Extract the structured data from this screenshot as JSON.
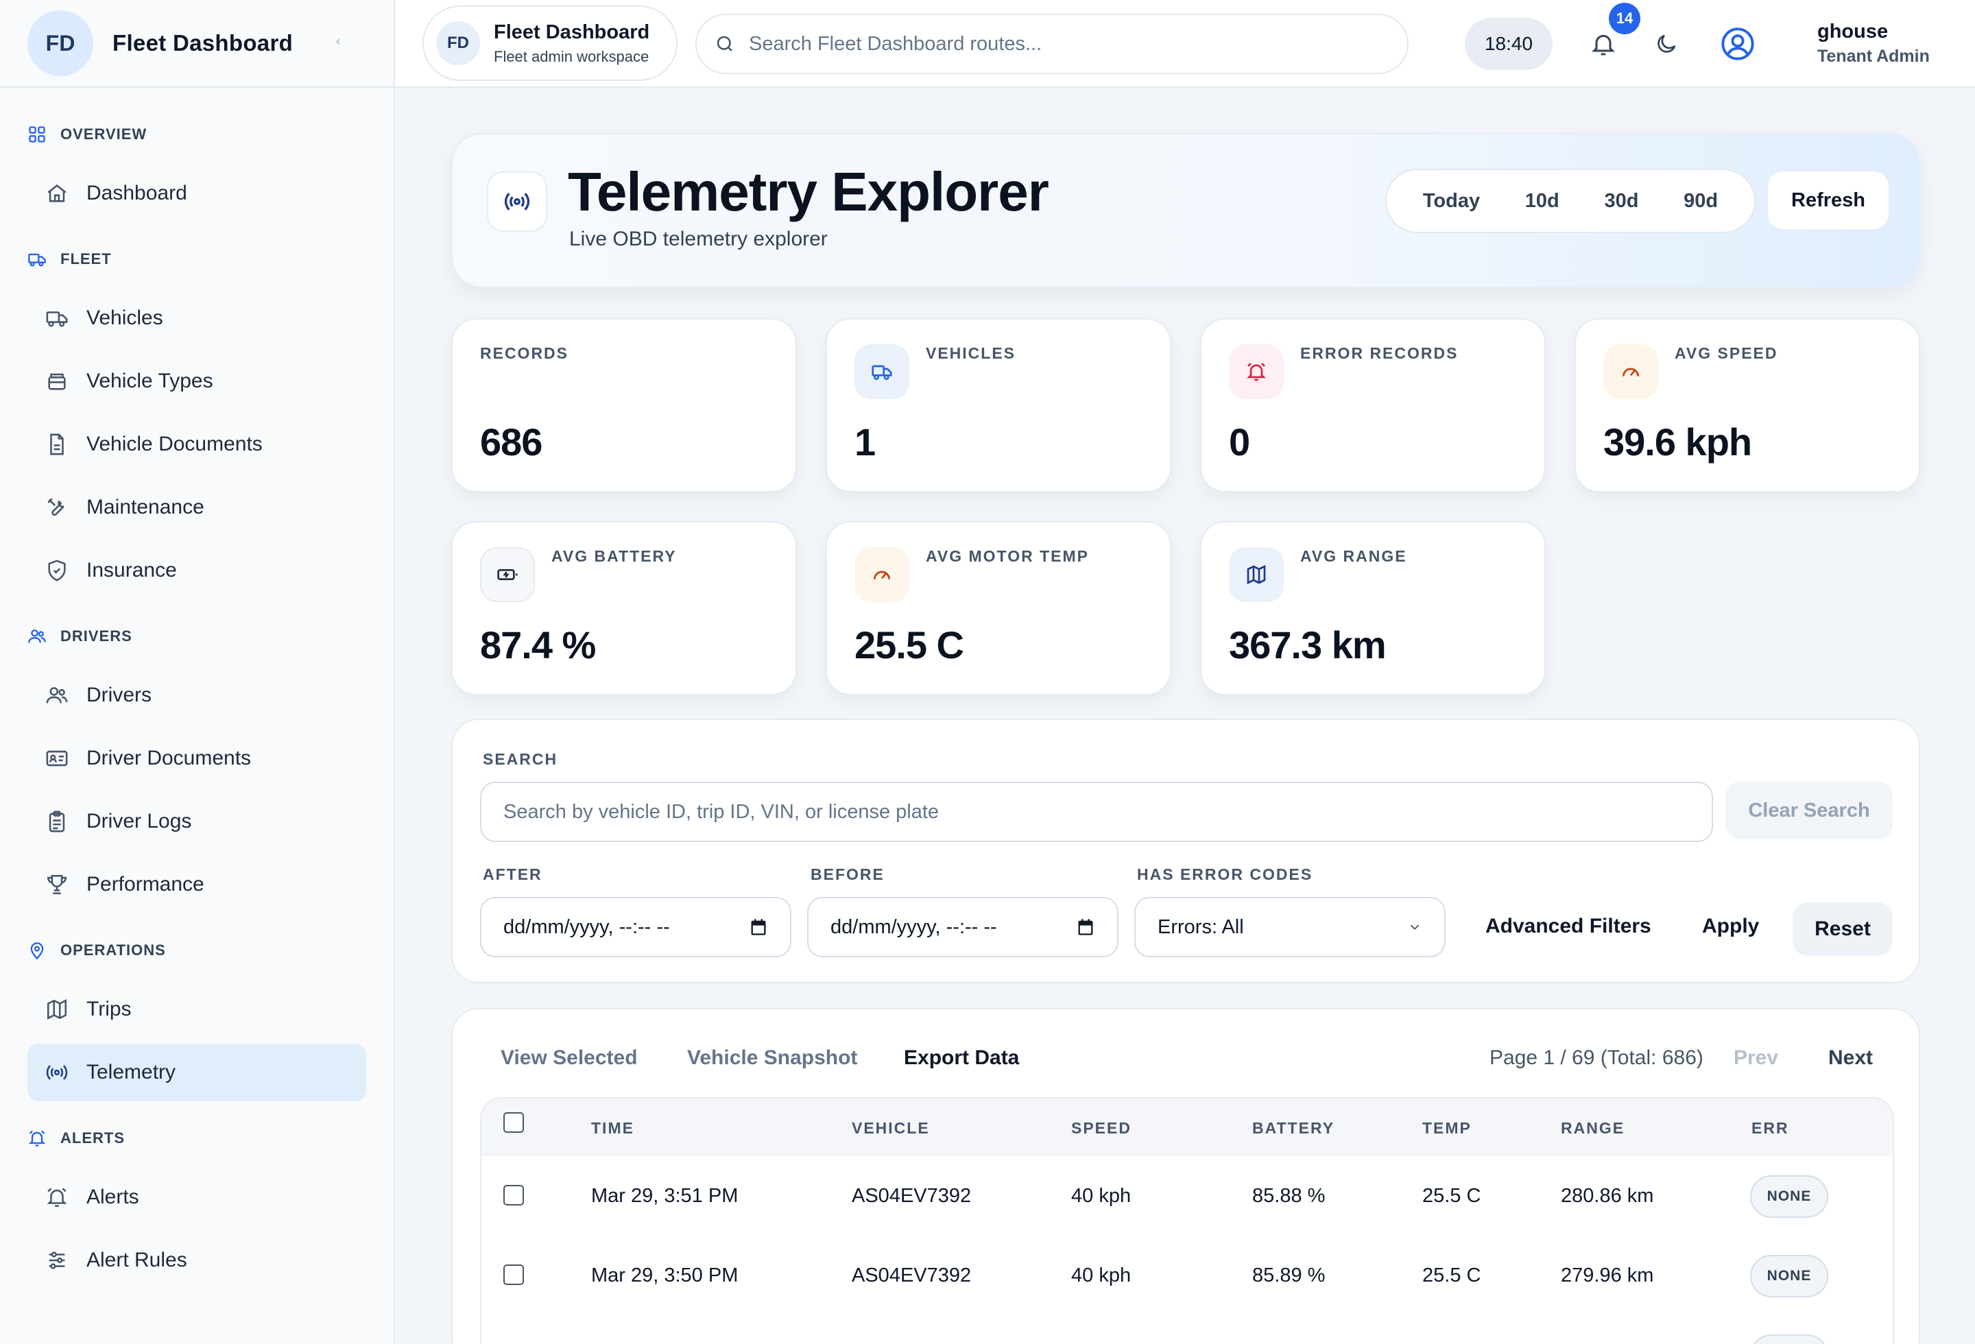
{
  "brand": {
    "initials": "FD",
    "name": "Fleet Dashboard",
    "collapse": "‹"
  },
  "nav": {
    "overview": "OVERVIEW",
    "dashboard": "Dashboard",
    "fleet": "FLEET",
    "vehicles": "Vehicles",
    "vehicle_types": "Vehicle Types",
    "vehicle_documents": "Vehicle Documents",
    "maintenance": "Maintenance",
    "insurance": "Insurance",
    "drivers_section": "DRIVERS",
    "drivers": "Drivers",
    "driver_documents": "Driver Documents",
    "driver_logs": "Driver Logs",
    "performance": "Performance",
    "operations": "OPERATIONS",
    "trips": "Trips",
    "telemetry": "Telemetry",
    "alerts_section": "ALERTS",
    "alerts": "Alerts",
    "alert_rules": "Alert Rules"
  },
  "topbar": {
    "ws_initials": "FD",
    "ws_title": "Fleet Dashboard",
    "ws_sub": "Fleet admin workspace",
    "search_placeholder": "Search Fleet Dashboard routes...",
    "clock": "18:40",
    "notifications": "14",
    "user_name": "ghouse",
    "user_role": "Tenant Admin"
  },
  "hero": {
    "title": "Telemetry Explorer",
    "subtitle": "Live OBD telemetry explorer",
    "ranges": [
      "Today",
      "10d",
      "30d",
      "90d"
    ],
    "refresh": "Refresh"
  },
  "stats": {
    "records": {
      "label": "RECORDS",
      "value": "686"
    },
    "vehicles": {
      "label": "VEHICLES",
      "value": "1"
    },
    "errors": {
      "label": "ERROR RECORDS",
      "value": "0"
    },
    "speed": {
      "label": "AVG SPEED",
      "value": "39.6 kph"
    },
    "battery": {
      "label": "AVG BATTERY",
      "value": "87.4 %"
    },
    "motor": {
      "label": "AVG MOTOR TEMP",
      "value": "25.5 C"
    },
    "range": {
      "label": "AVG RANGE",
      "value": "367.3 km"
    }
  },
  "filters": {
    "search_label": "SEARCH",
    "search_placeholder": "Search by vehicle ID, trip ID, VIN, or license plate",
    "clear": "Clear Search",
    "after_label": "AFTER",
    "before_label": "BEFORE",
    "errors_label": "HAS ERROR CODES",
    "date_placeholder": "dd/mm/yyyy, --:-- --",
    "errors_value": "Errors: All",
    "advanced": "Advanced Filters",
    "apply": "Apply",
    "reset": "Reset"
  },
  "table": {
    "tabs": [
      "View Selected",
      "Vehicle Snapshot",
      "Export Data"
    ],
    "page_info": "Page 1 / 69 (Total: 686)",
    "prev": "Prev",
    "next": "Next",
    "headers": [
      "TIME",
      "VEHICLE",
      "SPEED",
      "BATTERY",
      "TEMP",
      "RANGE",
      "ERR"
    ],
    "rows": [
      {
        "time": "Mar 29, 3:51 PM",
        "vehicle": "AS04EV7392",
        "speed": "40 kph",
        "battery": "85.88 %",
        "temp": "25.5 C",
        "range": "280.86 km",
        "err": "NONE"
      },
      {
        "time": "Mar 29, 3:50 PM",
        "vehicle": "AS04EV7392",
        "speed": "40 kph",
        "battery": "85.89 %",
        "temp": "25.5 C",
        "range": "279.96 km",
        "err": "NONE"
      }
    ]
  }
}
